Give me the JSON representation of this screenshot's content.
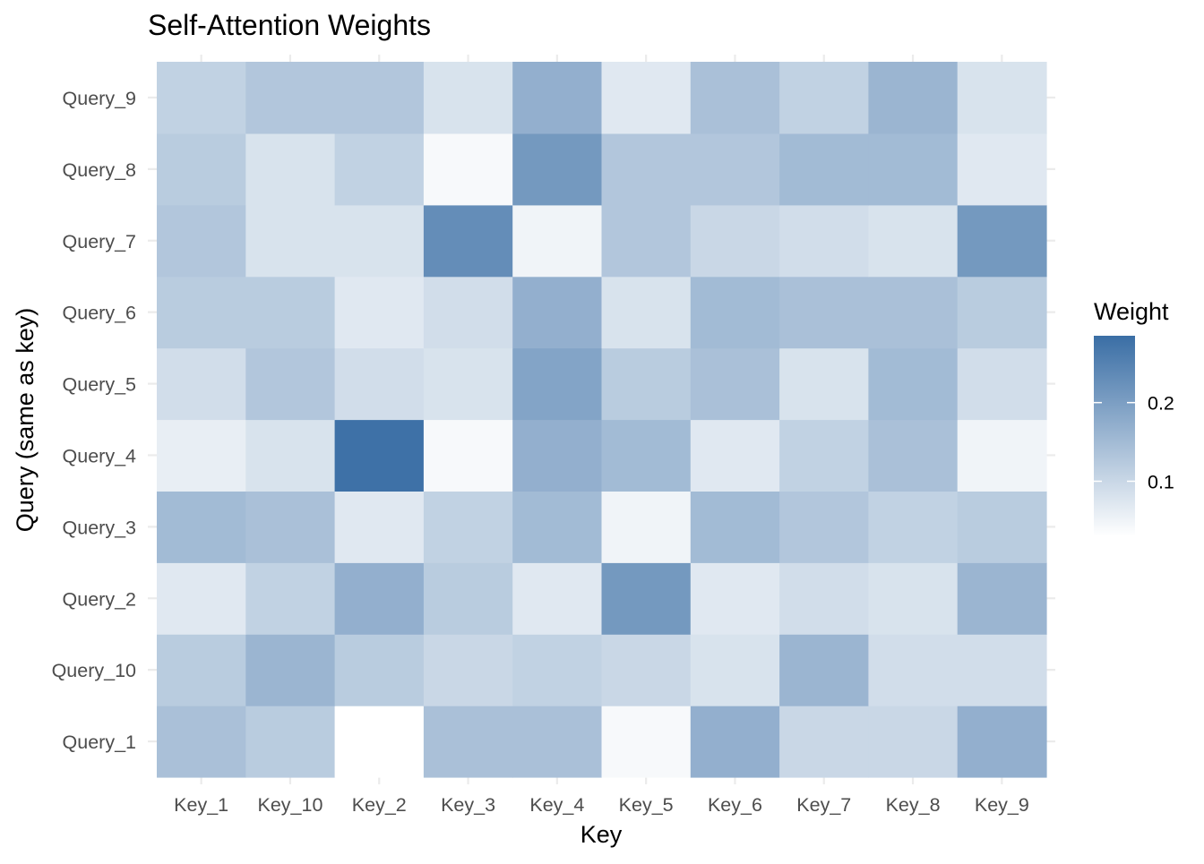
{
  "chart_data": {
    "type": "heatmap",
    "title": "Self-Attention Weights",
    "xlabel": "Key",
    "ylabel": "Query (same as key)",
    "x_categories": [
      "Key_1",
      "Key_10",
      "Key_2",
      "Key_3",
      "Key_4",
      "Key_5",
      "Key_6",
      "Key_7",
      "Key_8",
      "Key_9"
    ],
    "y_categories": [
      "Query_1",
      "Query_10",
      "Query_2",
      "Query_3",
      "Query_4",
      "Query_5",
      "Query_6",
      "Query_7",
      "Query_8",
      "Query_9"
    ],
    "values": [
      [
        0.14,
        0.12,
        0.03,
        0.14,
        0.14,
        0.04,
        0.17,
        0.1,
        0.1,
        0.17
      ],
      [
        0.12,
        0.16,
        0.12,
        0.1,
        0.11,
        0.1,
        0.08,
        0.16,
        0.09,
        0.09
      ],
      [
        0.07,
        0.11,
        0.17,
        0.12,
        0.07,
        0.21,
        0.07,
        0.09,
        0.08,
        0.16
      ],
      [
        0.15,
        0.14,
        0.07,
        0.11,
        0.15,
        0.05,
        0.15,
        0.13,
        0.11,
        0.12
      ],
      [
        0.06,
        0.08,
        0.28,
        0.04,
        0.17,
        0.15,
        0.07,
        0.11,
        0.14,
        0.05
      ],
      [
        0.09,
        0.13,
        0.09,
        0.08,
        0.19,
        0.12,
        0.14,
        0.08,
        0.15,
        0.09
      ],
      [
        0.12,
        0.12,
        0.07,
        0.09,
        0.17,
        0.08,
        0.15,
        0.14,
        0.14,
        0.12
      ],
      [
        0.13,
        0.08,
        0.08,
        0.23,
        0.05,
        0.13,
        0.1,
        0.09,
        0.08,
        0.21
      ],
      [
        0.12,
        0.08,
        0.11,
        0.04,
        0.21,
        0.13,
        0.13,
        0.15,
        0.15,
        0.07
      ],
      [
        0.11,
        0.13,
        0.13,
        0.08,
        0.17,
        0.07,
        0.14,
        0.11,
        0.16,
        0.08
      ]
    ],
    "legend": {
      "title": "Weight",
      "ticks": [
        0.1,
        0.2
      ],
      "tick_labels": [
        "0.1",
        "0.2"
      ],
      "range": [
        0.03,
        0.285
      ],
      "low_color": "#ffffff",
      "high_color": "#3a6ea5",
      "placement": "right"
    },
    "grid": true
  }
}
